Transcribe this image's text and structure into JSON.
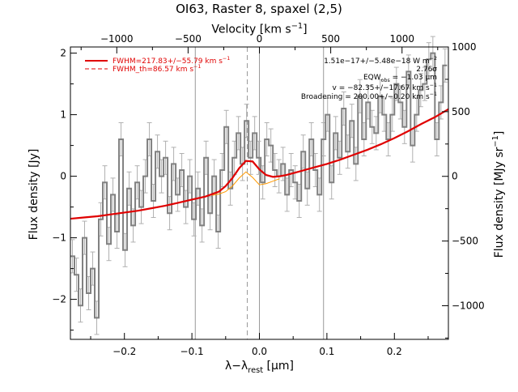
{
  "title": "OI63, Raster 8, spaxel (2,5)",
  "colors": {
    "data": "#808080",
    "errorbar": "#b0b0b0",
    "fit": "#e00000",
    "component": "#ff9900",
    "axis": "#000000"
  },
  "axes": {
    "x_bottom": {
      "label_main": "λ−λ",
      "label_sub": "rest",
      "label_unit": " [μm]",
      "ticks": [
        "−0.2",
        "−0.1",
        "0.0",
        "0.1",
        "0.2"
      ],
      "tick_values": [
        -0.2,
        -0.1,
        0.0,
        0.1,
        0.2
      ],
      "range": [
        -0.28,
        0.28
      ]
    },
    "x_top": {
      "label_main": "Velocity [km s",
      "label_sup": "−1",
      "label_end": "]",
      "ticks": [
        "−1000",
        "−500",
        "0",
        "500",
        "1000"
      ],
      "tick_values": [
        -1000,
        -500,
        0,
        500,
        1000
      ],
      "range": [
        -1325,
        1325
      ]
    },
    "y_left": {
      "label": "Flux density [Jy]",
      "ticks": [
        "−2",
        "−1",
        "0",
        "1",
        "2"
      ],
      "tick_values": [
        -2,
        -1,
        0,
        1,
        2
      ],
      "range": [
        -2.65,
        2.1
      ]
    },
    "y_right": {
      "label": "Flux density [MJy sr",
      "label_sup": "−1",
      "label_end": "]",
      "ticks": [
        "−1000",
        "−500",
        "0",
        "500",
        "1000"
      ],
      "tick_values": [
        -1000,
        -500,
        0,
        500,
        1000
      ],
      "range": [
        -1260,
        1000
      ]
    }
  },
  "legend": {
    "fwhm_fit": {
      "label": "FWHM=217.83+/−55.79 km s",
      "sup": "−1"
    },
    "fwhm_th": {
      "label": "FWHM_th=86.57 km s",
      "sup": "−1"
    }
  },
  "annotations": {
    "flux": {
      "text": "1.51e−17+/−5.48e−18 W m",
      "sup": "−2"
    },
    "sigma": {
      "text": "2.76σ"
    },
    "eqw": {
      "prefix": "EQW",
      "sub": "obs",
      "text": " = −1.03 μm"
    },
    "velocity": {
      "text": "v = −82.35+/−17.67 km s",
      "sup": "−1"
    },
    "broadening": {
      "text": "Broadening = 200.00+/−0.20 km s",
      "sup": "−1"
    }
  },
  "chart_data": {
    "type": "line",
    "title": "OI63, Raster 8, spaxel (2,5)",
    "xlabel": "λ−λrest [μm]",
    "ylabel": "Flux density [Jy]",
    "x_top_label": "Velocity [km s−1]",
    "y_right_label": "Flux density [MJy sr−1]",
    "xlim": [
      -0.28,
      0.28
    ],
    "ylim": [
      -2.65,
      2.1
    ],
    "grid": false,
    "legend_position": "top-left",
    "vertical_lines": {
      "solid": [
        -0.095,
        0.0,
        0.095
      ],
      "dashed": [
        -0.018
      ]
    },
    "series": [
      {
        "name": "data",
        "style": "step with error bars",
        "x": [
          -0.28,
          -0.274,
          -0.268,
          -0.262,
          -0.256,
          -0.25,
          -0.244,
          -0.238,
          -0.232,
          -0.226,
          -0.22,
          -0.214,
          -0.208,
          -0.202,
          -0.196,
          -0.19,
          -0.184,
          -0.178,
          -0.172,
          -0.166,
          -0.16,
          -0.154,
          -0.148,
          -0.142,
          -0.136,
          -0.13,
          -0.124,
          -0.118,
          -0.112,
          -0.106,
          -0.1,
          -0.094,
          -0.088,
          -0.082,
          -0.076,
          -0.07,
          -0.064,
          -0.058,
          -0.052,
          -0.046,
          -0.04,
          -0.034,
          -0.028,
          -0.022,
          -0.016,
          -0.01,
          -0.004,
          0.002,
          0.008,
          0.014,
          0.02,
          0.026,
          0.032,
          0.038,
          0.044,
          0.05,
          0.056,
          0.062,
          0.068,
          0.074,
          0.08,
          0.086,
          0.092,
          0.098,
          0.104,
          0.11,
          0.116,
          0.122,
          0.128,
          0.134,
          0.14,
          0.146,
          0.152,
          0.158,
          0.164,
          0.17,
          0.176,
          0.182,
          0.188,
          0.194,
          0.2,
          0.206,
          0.212,
          0.218,
          0.224,
          0.23,
          0.236,
          0.242,
          0.248,
          0.254,
          0.26,
          0.266,
          0.272
        ],
        "y": [
          -1.3,
          -1.6,
          -2.1,
          -1.0,
          -1.9,
          -1.5,
          -2.3,
          -0.7,
          -0.1,
          -1.1,
          -0.3,
          -0.9,
          0.6,
          -1.2,
          -0.2,
          -0.8,
          -0.1,
          -0.5,
          0.0,
          0.6,
          -0.4,
          0.4,
          0.0,
          0.3,
          -0.6,
          0.2,
          -0.3,
          0.1,
          -0.5,
          0.0,
          -0.7,
          -0.2,
          -0.8,
          0.3,
          -0.6,
          0.0,
          -0.9,
          0.1,
          0.8,
          -0.2,
          0.3,
          0.7,
          0.2,
          0.9,
          0.3,
          0.7,
          0.3,
          -0.1,
          0.6,
          0.5,
          0.1,
          0.0,
          0.2,
          -0.3,
          0.1,
          -0.1,
          -0.4,
          0.4,
          -0.2,
          0.6,
          0.1,
          -0.3,
          0.6,
          1.0,
          -0.1,
          0.7,
          0.3,
          1.1,
          0.4,
          0.9,
          0.2,
          1.3,
          0.6,
          1.2,
          0.8,
          0.7,
          1.3,
          1.0,
          0.6,
          1.0,
          1.5,
          1.2,
          0.8,
          1.7,
          0.5,
          1.0,
          1.4,
          1.5,
          1.9,
          2.0,
          0.6,
          1.2,
          1.8
        ],
        "error": 0.27
      },
      {
        "name": "fit",
        "style": "thick red line",
        "x": [
          -0.28,
          -0.26,
          -0.24,
          -0.22,
          -0.2,
          -0.18,
          -0.16,
          -0.14,
          -0.12,
          -0.1,
          -0.08,
          -0.06,
          -0.05,
          -0.04,
          -0.03,
          -0.02,
          -0.01,
          0.0,
          0.01,
          0.02,
          0.03,
          0.04,
          0.06,
          0.08,
          0.1,
          0.12,
          0.14,
          0.16,
          0.18,
          0.2,
          0.22,
          0.24,
          0.26,
          0.28
        ],
        "y": [
          -0.69,
          -0.67,
          -0.65,
          -0.62,
          -0.59,
          -0.56,
          -0.52,
          -0.48,
          -0.43,
          -0.38,
          -0.33,
          -0.25,
          -0.16,
          -0.03,
          0.13,
          0.25,
          0.24,
          0.11,
          0.02,
          -0.01,
          0.0,
          0.02,
          0.08,
          0.14,
          0.2,
          0.27,
          0.35,
          0.43,
          0.52,
          0.62,
          0.73,
          0.85,
          0.96,
          1.09
        ]
      },
      {
        "name": "line component",
        "style": "thin orange line",
        "x": [
          -0.07,
          -0.06,
          -0.05,
          -0.04,
          -0.03,
          -0.02,
          -0.01,
          0.0,
          0.01,
          0.02,
          0.03
        ],
        "y": [
          -0.31,
          -0.29,
          -0.25,
          -0.16,
          -0.03,
          0.07,
          -0.02,
          -0.14,
          -0.12,
          -0.08,
          -0.04
        ]
      }
    ]
  }
}
